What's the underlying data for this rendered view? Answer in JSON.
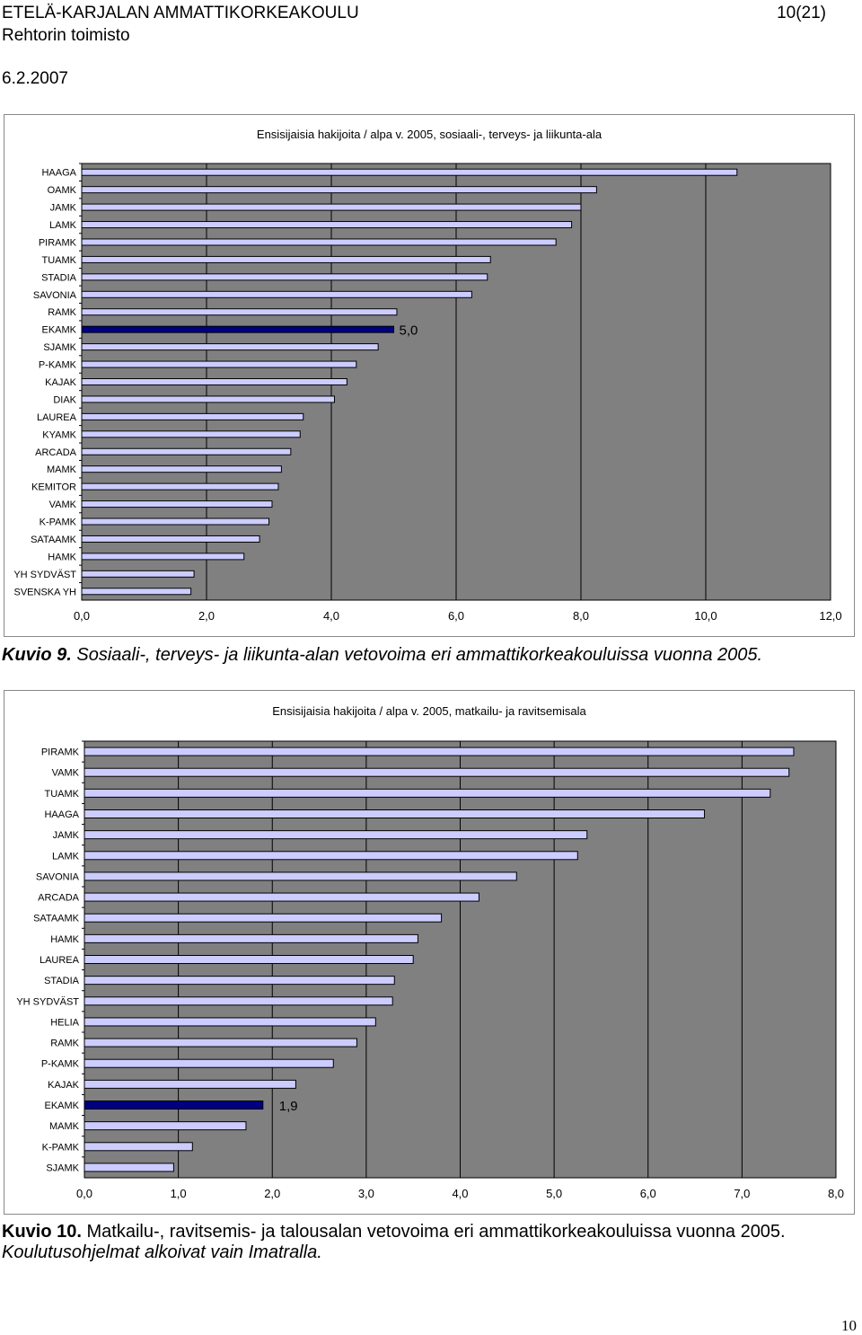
{
  "header": {
    "org": "ETELÄ-KARJALAN AMMATTIKORKEAKOULU",
    "office": "Rehtorin toimisto",
    "page": "10(21)",
    "date": "6.2.2007"
  },
  "captions": {
    "c1_num": "Kuvio 9.",
    "c1_text": " Sosiaali-, terveys- ja liikunta-alan vetovoima eri ammattikorkeakouluissa vuonna 2005.",
    "c2_num": "Kuvio 10.",
    "c2_text": " Matkailu-, ravitsemis- ja talousalan vetovoima eri ammattikorkeakouluissa vuonna 2005.",
    "c2_line2": "Koulutusohjelmat alkoivat vain Imatralla."
  },
  "footer": {
    "page_number": "10"
  },
  "colors": {
    "plot_bg": "#808080",
    "bar": "#ccccff",
    "highlight": "#000080",
    "bar_border": "#000000"
  },
  "chart_data": [
    {
      "type": "bar",
      "orientation": "horizontal",
      "title": "Ensisijaisia hakijoita / alpa v. 2005, sosiaali-, terveys- ja liikunta-ala",
      "categories": [
        "HAAGA",
        "OAMK",
        "JAMK",
        "LAMK",
        "PIRAMK",
        "TUAMK",
        "STADIA",
        "SAVONIA",
        "RAMK",
        "EKAMK",
        "SJAMK",
        "P-KAMK",
        "KAJAK",
        "DIAK",
        "LAUREA",
        "KYAMK",
        "ARCADA",
        "MAMK",
        "KEMITOR",
        "VAMK",
        "K-PAMK",
        "SATAAMK",
        "HAMK",
        "YH SYDVÄST",
        "SVENSKA YH"
      ],
      "values": [
        10.5,
        8.25,
        8.0,
        7.85,
        7.6,
        6.55,
        6.5,
        6.25,
        5.05,
        5.0,
        4.75,
        4.4,
        4.25,
        4.05,
        3.55,
        3.5,
        3.35,
        3.2,
        3.15,
        3.05,
        3.0,
        2.85,
        2.6,
        1.8,
        1.75
      ],
      "highlight": "EKAMK",
      "highlight_label": "5,0",
      "xlim": [
        0,
        12
      ],
      "xticks": [
        "0,0",
        "2,0",
        "4,0",
        "6,0",
        "8,0",
        "10,0",
        "12,0"
      ],
      "grid": "vertical"
    },
    {
      "type": "bar",
      "orientation": "horizontal",
      "title": "Ensisijaisia hakijoita / alpa v. 2005, matkailu- ja ravitsemisala",
      "categories": [
        "PIRAMK",
        "VAMK",
        "TUAMK",
        "HAAGA",
        "JAMK",
        "LAMK",
        "SAVONIA",
        "ARCADA",
        "SATAAMK",
        "HAMK",
        "LAUREA",
        "STADIA",
        "YH SYDVÄST",
        "HELIA",
        "RAMK",
        "P-KAMK",
        "KAJAK",
        "EKAMK",
        "MAMK",
        "K-PAMK",
        "SJAMK"
      ],
      "values": [
        7.55,
        7.5,
        7.3,
        6.6,
        5.35,
        5.25,
        4.6,
        4.2,
        3.8,
        3.55,
        3.5,
        3.3,
        3.28,
        3.1,
        2.9,
        2.65,
        2.25,
        1.9,
        1.72,
        1.15,
        0.95
      ],
      "highlight": "EKAMK",
      "highlight_label": "1,9",
      "xlim": [
        0,
        8
      ],
      "xticks": [
        "0,0",
        "1,0",
        "2,0",
        "3,0",
        "4,0",
        "5,0",
        "6,0",
        "7,0",
        "8,0"
      ],
      "grid": "vertical"
    }
  ]
}
